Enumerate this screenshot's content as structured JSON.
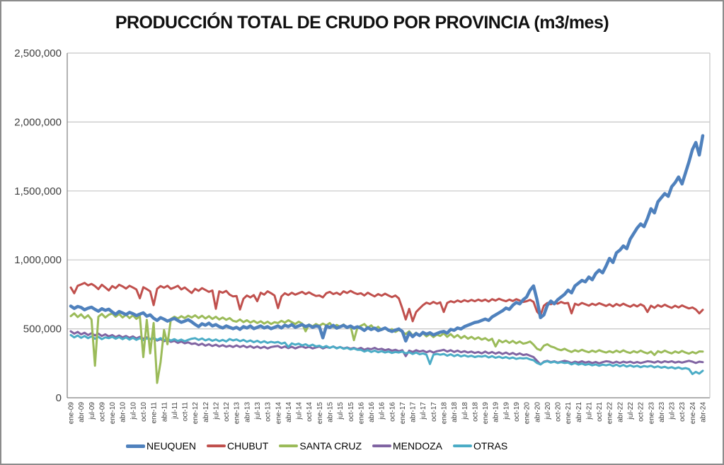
{
  "title": "PRODUCCIÓN TOTAL DE CRUDO POR PROVINCIA (m3/mes)",
  "chart_data": {
    "type": "line",
    "title": "PRODUCCIÓN TOTAL DE CRUDO POR PROVINCIA (m3/mes)",
    "xlabel": "",
    "ylabel": "",
    "frequency": "monthly",
    "x_start": "ene-09",
    "x_end": "abr-24",
    "grid": "horizontal",
    "legend_position": "bottom",
    "y_axis": {
      "min": 0,
      "max": 2500000,
      "step": 500000,
      "tick_labels": [
        "0",
        "500,000",
        "1,000,000",
        "1,500,000",
        "2,000,000",
        "2,500,000"
      ]
    },
    "x_tick_labels": [
      "ene-09",
      "abr-09",
      "jul-09",
      "oct-09",
      "ene-10",
      "abr-10",
      "jul-10",
      "oct-10",
      "ene-11",
      "abr-11",
      "jul-11",
      "oct-11",
      "ene-12",
      "abr-12",
      "jul-12",
      "oct-12",
      "ene-13",
      "abr-13",
      "jul-13",
      "oct-13",
      "ene-14",
      "abr-14",
      "jul-14",
      "oct-14",
      "ene-15",
      "abr-15",
      "jul-15",
      "oct-15",
      "ene-16",
      "abr-16",
      "jul-16",
      "oct-16",
      "ene-17",
      "abr-17",
      "jul-17",
      "oct-17",
      "ene-18",
      "abr-18",
      "jul-18",
      "oct-18",
      "ene-19",
      "abr-19",
      "jul-19",
      "oct-19",
      "ene-20",
      "abr-20",
      "jul-20",
      "oct-20",
      "ene-21",
      "abr-21",
      "jul-21",
      "oct-21",
      "ene-22",
      "abr-22",
      "jul-22",
      "oct-22",
      "ene-23",
      "abr-23",
      "jul-23",
      "oct-23",
      "ene-24",
      "abr-24"
    ],
    "months_per_tick": 3,
    "draw_order": [
      "CHUBUT",
      "MENDOZA",
      "OTRAS",
      "SANTA CRUZ",
      "NEUQUEN"
    ],
    "series": [
      {
        "name": "NEUQUEN",
        "color": "#4F81BD",
        "line_width": 4.5,
        "values": [
          665000,
          648000,
          662000,
          655000,
          638000,
          650000,
          657000,
          641000,
          628000,
          646000,
          634000,
          642000,
          622000,
          605000,
          626000,
          615000,
          603000,
          619000,
          610000,
          596000,
          607000,
          616000,
          592000,
          601000,
          577000,
          561000,
          581000,
          570000,
          556000,
          566000,
          576000,
          560000,
          547000,
          556000,
          566000,
          551000,
          532000,
          516000,
          537000,
          526000,
          541000,
          521000,
          531000,
          516000,
          506000,
          521000,
          511000,
          501000,
          511000,
          496000,
          516000,
          506000,
          521000,
          501000,
          511000,
          521000,
          506000,
          516000,
          501000,
          511000,
          521000,
          506000,
          526000,
          516000,
          531000,
          511000,
          521000,
          531000,
          516000,
          526000,
          511000,
          521000,
          515000,
          435000,
          520000,
          510000,
          525000,
          505000,
          515000,
          525000,
          510000,
          520000,
          505000,
          515000,
          505000,
          488000,
          508000,
          495000,
          505000,
          487000,
          496000,
          506000,
          491000,
          481000,
          491000,
          499000,
          481000,
          412000,
          471000,
          443000,
          466000,
          451000,
          474000,
          461000,
          471000,
          456000,
          466000,
          476000,
          481000,
          469000,
          496000,
          489000,
          506000,
          499000,
          516000,
          526000,
          536000,
          546000,
          551000,
          561000,
          571000,
          561000,
          586000,
          601000,
          616000,
          631000,
          651000,
          641000,
          671000,
          691000,
          681000,
          711000,
          731000,
          781000,
          811000,
          711000,
          581000,
          601000,
          671000,
          701000,
          681000,
          711000,
          731000,
          751000,
          781000,
          761000,
          811000,
          831000,
          851000,
          841000,
          876000,
          856000,
          901000,
          926000,
          906000,
          956000,
          1011000,
          981000,
          1051000,
          1071000,
          1101000,
          1081000,
          1151000,
          1191000,
          1231000,
          1261000,
          1241000,
          1301000,
          1371000,
          1341000,
          1421000,
          1451000,
          1481000,
          1461000,
          1531000,
          1561000,
          1601000,
          1551000,
          1631000,
          1711000,
          1801000,
          1851000,
          1761000,
          1901000
        ]
      },
      {
        "name": "CHUBUT",
        "color": "#C0504D",
        "line_width": 3,
        "values": [
          800000,
          758000,
          812000,
          822000,
          833000,
          815000,
          826000,
          810000,
          788000,
          820000,
          800000,
          778000,
          810000,
          795000,
          820000,
          808000,
          792000,
          812000,
          800000,
          786000,
          722000,
          802000,
          788000,
          772000,
          672000,
          790000,
          810000,
          798000,
          812000,
          790000,
          800000,
          812000,
          786000,
          800000,
          780000,
          760000,
          790000,
          775000,
          795000,
          782000,
          768000,
          778000,
          645000,
          772000,
          762000,
          775000,
          748000,
          735000,
          738000,
          640000,
          718000,
          742000,
          728000,
          745000,
          700000,
          762000,
          748000,
          772000,
          758000,
          742000,
          650000,
          735000,
          758000,
          745000,
          762000,
          748000,
          758000,
          768000,
          752000,
          765000,
          750000,
          738000,
          742000,
          728000,
          758000,
          768000,
          752000,
          762000,
          748000,
          772000,
          760000,
          775000,
          762000,
          752000,
          758000,
          742000,
          762000,
          748000,
          735000,
          752000,
          740000,
          755000,
          742000,
          730000,
          742000,
          720000,
          648000,
          568000,
          645000,
          555000,
          622000,
          648000,
          672000,
          690000,
          680000,
          695000,
          682000,
          692000,
          622000,
          688000,
          700000,
          692000,
          706000,
          695000,
          708000,
          698000,
          710000,
          700000,
          712000,
          702000,
          712000,
          698000,
          715000,
          705000,
          718000,
          708000,
          700000,
          712000,
          702000,
          715000,
          705000,
          695000,
          700000,
          710000,
          695000,
          625000,
          598000,
          668000,
          688000,
          678000,
          692000,
          682000,
          695000,
          685000,
          688000,
          612000,
          682000,
          672000,
          688000,
          678000,
          668000,
          682000,
          672000,
          686000,
          676000,
          666000,
          678000,
          662000,
          680000,
          668000,
          682000,
          670000,
          660000,
          675000,
          662000,
          678000,
          665000,
          622000,
          668000,
          652000,
          672000,
          660000,
          675000,
          662000,
          652000,
          668000,
          655000,
          670000,
          658000,
          648000,
          655000,
          640000,
          612000,
          638000
        ]
      },
      {
        "name": "SANTA CRUZ",
        "color": "#9BBB59",
        "line_width": 3,
        "values": [
          592000,
          612000,
          585000,
          605000,
          578000,
          598000,
          568000,
          232000,
          588000,
          608000,
          582000,
          602000,
          612000,
          588000,
          608000,
          582000,
          602000,
          578000,
          598000,
          572000,
          592000,
          295000,
          565000,
          322000,
          542000,
          108000,
          258000,
          492000,
          388000,
          572000,
          588000,
          575000,
          592000,
          578000,
          595000,
          582000,
          598000,
          578000,
          595000,
          575000,
          592000,
          572000,
          588000,
          568000,
          582000,
          565000,
          578000,
          558000,
          552000,
          568000,
          548000,
          562000,
          545000,
          558000,
          542000,
          555000,
          538000,
          552000,
          535000,
          548000,
          542000,
          558000,
          545000,
          562000,
          548000,
          535000,
          552000,
          538000,
          482000,
          532000,
          518000,
          535000,
          522000,
          538000,
          525000,
          542000,
          512000,
          528000,
          515000,
          532000,
          505000,
          522000,
          418000,
          508000,
          522000,
          535000,
          508000,
          525000,
          498000,
          515000,
          492000,
          508000,
          485000,
          498000,
          478000,
          492000,
          478000,
          462000,
          482000,
          452000,
          472000,
          448000,
          468000,
          445000,
          462000,
          440000,
          458000,
          448000,
          468000,
          442000,
          462000,
          438000,
          455000,
          432000,
          448000,
          428000,
          442000,
          425000,
          438000,
          422000,
          432000,
          415000,
          428000,
          372000,
          418000,
          402000,
          415000,
          398000,
          412000,
          395000,
          408000,
          392000,
          398000,
          408000,
          385000,
          355000,
          345000,
          378000,
          388000,
          372000,
          365000,
          352000,
          345000,
          355000,
          342000,
          332000,
          345000,
          335000,
          348000,
          338000,
          330000,
          342000,
          332000,
          345000,
          335000,
          328000,
          338000,
          328000,
          342000,
          330000,
          344000,
          332000,
          325000,
          338000,
          328000,
          342000,
          330000,
          322000,
          335000,
          310000,
          338000,
          328000,
          342000,
          330000,
          322000,
          336000,
          326000,
          340000,
          328000,
          320000,
          332000,
          322000,
          336000,
          335000
        ]
      },
      {
        "name": "MENDOZA",
        "color": "#8064A2",
        "line_width": 3,
        "values": [
          482000,
          465000,
          478000,
          460000,
          472000,
          455000,
          468000,
          452000,
          465000,
          448000,
          460000,
          445000,
          455000,
          440000,
          452000,
          438000,
          448000,
          435000,
          445000,
          430000,
          442000,
          428000,
          438000,
          425000,
          430000,
          415000,
          425000,
          410000,
          420000,
          405000,
          412000,
          398000,
          408000,
          395000,
          402000,
          390000,
          395000,
          382000,
          392000,
          378000,
          388000,
          375000,
          385000,
          372000,
          382000,
          370000,
          378000,
          368000,
          380000,
          368000,
          378000,
          365000,
          375000,
          362000,
          372000,
          360000,
          370000,
          358000,
          368000,
          372000,
          375000,
          362000,
          372000,
          360000,
          370000,
          358000,
          368000,
          372000,
          362000,
          370000,
          358000,
          365000,
          372000,
          358000,
          368000,
          362000,
          372000,
          360000,
          368000,
          358000,
          365000,
          355000,
          362000,
          352000,
          362000,
          348000,
          358000,
          352000,
          362000,
          350000,
          355000,
          345000,
          352000,
          342000,
          348000,
          338000,
          345000,
          302000,
          342000,
          332000,
          345000,
          335000,
          342000,
          330000,
          340000,
          328000,
          338000,
          342000,
          348000,
          335000,
          345000,
          332000,
          342000,
          330000,
          338000,
          328000,
          335000,
          325000,
          332000,
          322000,
          335000,
          322000,
          332000,
          320000,
          330000,
          318000,
          328000,
          315000,
          325000,
          312000,
          322000,
          310000,
          315000,
          305000,
          295000,
          268000,
          242000,
          262000,
          268000,
          258000,
          265000,
          255000,
          262000,
          268000,
          262000,
          252000,
          262000,
          255000,
          265000,
          255000,
          262000,
          252000,
          260000,
          250000,
          258000,
          265000,
          262000,
          252000,
          262000,
          252000,
          262000,
          255000,
          262000,
          252000,
          260000,
          252000,
          258000,
          265000,
          262000,
          255000,
          265000,
          255000,
          265000,
          258000,
          265000,
          255000,
          262000,
          255000,
          262000,
          268000,
          262000,
          252000,
          262000,
          258000
        ]
      },
      {
        "name": "OTRAS",
        "color": "#4BACC6",
        "line_width": 3,
        "values": [
          455000,
          438000,
          452000,
          435000,
          448000,
          432000,
          445000,
          428000,
          442000,
          425000,
          438000,
          432000,
          442000,
          428000,
          440000,
          425000,
          438000,
          422000,
          435000,
          420000,
          432000,
          418000,
          430000,
          425000,
          435000,
          420000,
          432000,
          418000,
          428000,
          415000,
          425000,
          412000,
          422000,
          410000,
          420000,
          428000,
          432000,
          420000,
          430000,
          416000,
          426000,
          413000,
          423000,
          410000,
          420000,
          408000,
          426000,
          416000,
          423000,
          410000,
          420000,
          406000,
          416000,
          403000,
          413000,
          400000,
          410000,
          398000,
          406000,
          400000,
          405000,
          392000,
          400000,
          368000,
          395000,
          385000,
          392000,
          380000,
          388000,
          375000,
          385000,
          372000,
          378000,
          365000,
          375000,
          362000,
          372000,
          358000,
          368000,
          355000,
          362000,
          350000,
          358000,
          348000,
          348000,
          335000,
          345000,
          332000,
          342000,
          330000,
          338000,
          328000,
          335000,
          325000,
          332000,
          328000,
          335000,
          322000,
          330000,
          318000,
          328000,
          315000,
          322000,
          312000,
          245000,
          312000,
          318000,
          312000,
          318000,
          305000,
          315000,
          302000,
          312000,
          300000,
          308000,
          298000,
          305000,
          295000,
          302000,
          298000,
          305000,
          292000,
          302000,
          290000,
          298000,
          288000,
          295000,
          285000,
          292000,
          282000,
          288000,
          285000,
          288000,
          278000,
          272000,
          252000,
          242000,
          258000,
          265000,
          255000,
          262000,
          252000,
          258000,
          252000,
          255000,
          242000,
          252000,
          240000,
          248000,
          238000,
          245000,
          235000,
          242000,
          232000,
          240000,
          235000,
          242000,
          230000,
          240000,
          228000,
          238000,
          226000,
          235000,
          225000,
          232000,
          222000,
          230000,
          225000,
          232000,
          220000,
          228000,
          218000,
          225000,
          215000,
          222000,
          212000,
          220000,
          210000,
          215000,
          208000,
          172000,
          188000,
          175000,
          196000
        ]
      }
    ],
    "colors": {
      "gridline": "#c6c6c6",
      "axis": "#808080",
      "tick_text": "#404040",
      "title_text": "#111111"
    }
  }
}
